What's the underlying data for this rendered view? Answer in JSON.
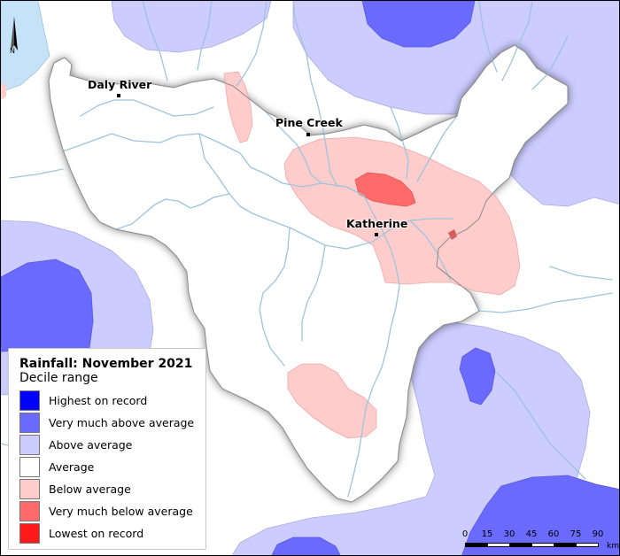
{
  "title": "Rainfall: November 2021",
  "subtitle": "Decile range",
  "legend": [
    {
      "label": "Highest on record",
      "color": "#0000ff"
    },
    {
      "label": "Very much above average",
      "color": "#6a6aff"
    },
    {
      "label": "Above average",
      "color": "#ccccff"
    },
    {
      "label": "Average",
      "color": "#ffffff"
    },
    {
      "label": "Below average",
      "color": "#ffcccc"
    },
    {
      "label": "Very much below average",
      "color": "#ff6a6a"
    },
    {
      "label": "Lowest on record",
      "color": "#ff1a1a"
    }
  ],
  "places": [
    {
      "name": "Daly River"
    },
    {
      "name": "Pine Creek"
    },
    {
      "name": "Katherine"
    }
  ],
  "north_label": "N",
  "scale": {
    "ticks": [
      "0",
      "15",
      "30",
      "45",
      "60",
      "75",
      "90"
    ],
    "unit": "km"
  },
  "colors": {
    "water": "#c6e2f7",
    "river": "#9ec4dd",
    "catchment_border": "#8a8a8a"
  }
}
